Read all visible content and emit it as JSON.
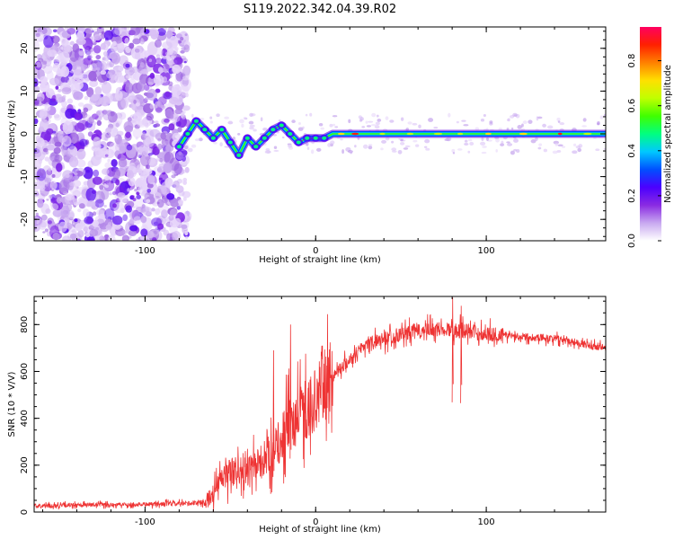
{
  "figure": {
    "title": "S119.2022.342.04.39.R02"
  },
  "chart_data": [
    {
      "type": "heatmap",
      "name": "spectrogram",
      "xlabel": "Height of straight line (km)",
      "ylabel": "Frequency (Hz)",
      "xlim": [
        -165,
        170
      ],
      "ylim": [
        -25,
        25
      ],
      "xticks": [
        "-100",
        "0",
        "100"
      ],
      "xtick_values": [
        -100,
        0,
        100
      ],
      "yticks": [
        "20",
        "10",
        "0",
        "-10",
        "-20"
      ],
      "ytick_values": [
        20,
        10,
        0,
        -10,
        -20
      ],
      "colorbar": {
        "label": "Normalized spectral amplitude",
        "range": [
          0,
          0.95
        ],
        "ticks": [
          "0.0",
          "0.2",
          "0.4",
          "0.6",
          "0.8"
        ],
        "tick_values": [
          0.0,
          0.2,
          0.4,
          0.6,
          0.8
        ],
        "colors": [
          "#ffffff",
          "#c8a8f0",
          "#8a2be2",
          "#4b00ff",
          "#0050ff",
          "#00c8ff",
          "#00ff80",
          "#40ff00",
          "#c0ff00",
          "#ffe000",
          "#ff8000",
          "#ff2000",
          "#ff0060"
        ]
      },
      "trace": {
        "noise_region_km": [
          -165,
          -75
        ],
        "line_start_km": 10,
        "points": [
          {
            "x": -80,
            "y": -3
          },
          {
            "x": -75,
            "y": 0
          },
          {
            "x": -70,
            "y": 3
          },
          {
            "x": -65,
            "y": 1
          },
          {
            "x": -60,
            "y": -1
          },
          {
            "x": -55,
            "y": 1
          },
          {
            "x": -50,
            "y": -2
          },
          {
            "x": -45,
            "y": -5
          },
          {
            "x": -40,
            "y": -1
          },
          {
            "x": -35,
            "y": -3
          },
          {
            "x": -30,
            "y": -1
          },
          {
            "x": -25,
            "y": 1
          },
          {
            "x": -20,
            "y": 2
          },
          {
            "x": -15,
            "y": 0
          },
          {
            "x": -10,
            "y": -2
          },
          {
            "x": -5,
            "y": -1
          },
          {
            "x": 0,
            "y": -1
          },
          {
            "x": 5,
            "y": -1
          },
          {
            "x": 10,
            "y": 0
          },
          {
            "x": 170,
            "y": 0
          }
        ]
      }
    },
    {
      "type": "line",
      "name": "snr",
      "xlabel": "Height of straight line (km)",
      "ylabel": "SNR (10 * V/V)",
      "xlim": [
        -165,
        170
      ],
      "ylim": [
        0,
        920
      ],
      "xticks": [
        "-100",
        "0",
        "100"
      ],
      "xtick_values": [
        -100,
        0,
        100
      ],
      "yticks": [
        "0",
        "200",
        "400",
        "600",
        "800"
      ],
      "ytick_values": [
        0,
        200,
        400,
        600,
        800
      ],
      "color": "#ee3333",
      "series": [
        {
          "name": "SNR",
          "x": [
            -165,
            -150,
            -130,
            -110,
            -90,
            -75,
            -65,
            -60,
            -55,
            -50,
            -45,
            -40,
            -35,
            -30,
            -25,
            -20,
            -15,
            -10,
            -5,
            0,
            5,
            10,
            15,
            20,
            25,
            30,
            40,
            50,
            60,
            70,
            80,
            90,
            100,
            110,
            120,
            130,
            140,
            150,
            160,
            170
          ],
          "values": [
            25,
            28,
            30,
            32,
            34,
            36,
            42,
            80,
            140,
            170,
            180,
            170,
            200,
            220,
            250,
            320,
            380,
            420,
            440,
            480,
            540,
            580,
            620,
            650,
            690,
            720,
            740,
            760,
            770,
            780,
            780,
            770,
            760,
            755,
            750,
            745,
            740,
            730,
            710,
            700
          ]
        }
      ],
      "annotations": [
        {
          "x": -25,
          "y": 690
        },
        {
          "x": -15,
          "y": 800
        },
        {
          "x": 80,
          "y": 915
        },
        {
          "x": 85,
          "y": 880
        }
      ]
    }
  ]
}
